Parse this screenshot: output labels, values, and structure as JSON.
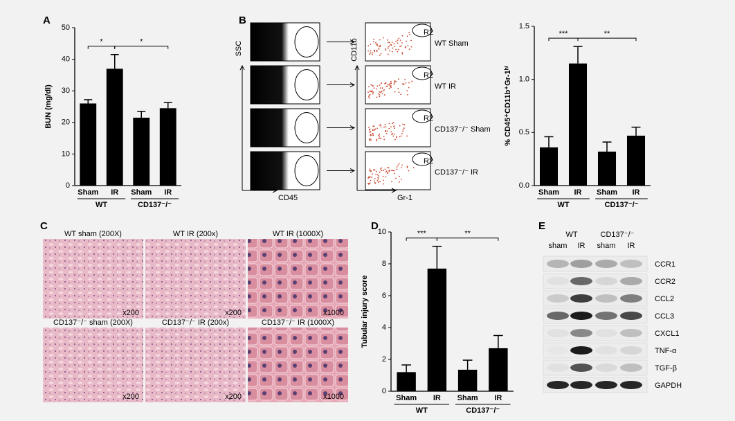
{
  "chart_data": [
    {
      "type": "bar",
      "panel": "A",
      "ylabel": "BUN (mg/dl)",
      "categories": [
        "Sham",
        "IR",
        "Sham",
        "IR"
      ],
      "values": [
        26,
        37,
        21.5,
        24.5
      ],
      "errors": [
        1.2,
        4.5,
        2,
        1.8
      ],
      "color": "#000000",
      "ylim": [
        0,
        50
      ],
      "yticks": [
        0,
        10,
        20,
        30,
        40,
        50
      ],
      "groups": [
        "WT",
        "CD137⁻/⁻"
      ],
      "annotations": [
        "*",
        "*"
      ]
    },
    {
      "type": "bar",
      "panel": "B",
      "ylabel": "% CD45⁺CD11b⁺Gr-1ʰⁱ",
      "categories": [
        "Sham",
        "IR",
        "Sham",
        "IR"
      ],
      "values": [
        0.36,
        1.15,
        0.32,
        0.47
      ],
      "errors": [
        0.1,
        0.16,
        0.09,
        0.08
      ],
      "color": "#000000",
      "ylim": [
        0,
        1.5
      ],
      "yticks": [
        {
          "value": 0,
          "label": "0.0"
        },
        0.5,
        {
          "value": 1,
          "label": "1.0"
        },
        1.5
      ],
      "groups": [
        "WT",
        "CD137⁻/⁻"
      ],
      "annotations": [
        "***",
        "**"
      ]
    },
    {
      "type": "bar",
      "panel": "D",
      "ylabel": "Tubular injury score",
      "categories": [
        "Sham",
        "IR",
        "Sham",
        "IR"
      ],
      "values": [
        1.2,
        7.7,
        1.35,
        2.7
      ],
      "errors": [
        0.45,
        1.4,
        0.6,
        0.8
      ],
      "color": "#000000",
      "ylim": [
        0,
        10
      ],
      "yticks": [
        0,
        2,
        4,
        6,
        8,
        10
      ],
      "groups": [
        "WT",
        "CD137⁻/⁻"
      ],
      "annotations": [
        "***",
        "**"
      ]
    }
  ],
  "flow": {
    "y_axis": "SSC",
    "x_axis": "CD45",
    "y_axis_2": "CD11b",
    "x_axis_2": "Gr-1",
    "gate": "R2",
    "rows": [
      "WT Sham",
      "WT IR",
      "CD137⁻/⁻ Sham",
      "CD137⁻/⁻ IR"
    ]
  },
  "histology": {
    "panel": "C",
    "captions": [
      "WT sham (200X)",
      "WT IR (200x)",
      "WT IR (1000X)",
      "CD137⁻/⁻ sham (200X)",
      "CD137⁻/⁻ IR (200x)",
      "CD137⁻/⁻ IR (1000X)"
    ],
    "scales": [
      "x200",
      "x200",
      "x1000",
      "x200",
      "x200",
      "x1000"
    ]
  },
  "western": {
    "panel": "E",
    "groups": [
      "WT",
      "CD137⁻/⁻"
    ],
    "lanes": [
      "sham",
      "IR",
      "sham",
      "IR"
    ],
    "proteins": [
      "CCR1",
      "CCR2",
      "CCL2",
      "CCL3",
      "CXCL1",
      "TNF-α",
      "TGF-β",
      "GAPDH"
    ]
  }
}
